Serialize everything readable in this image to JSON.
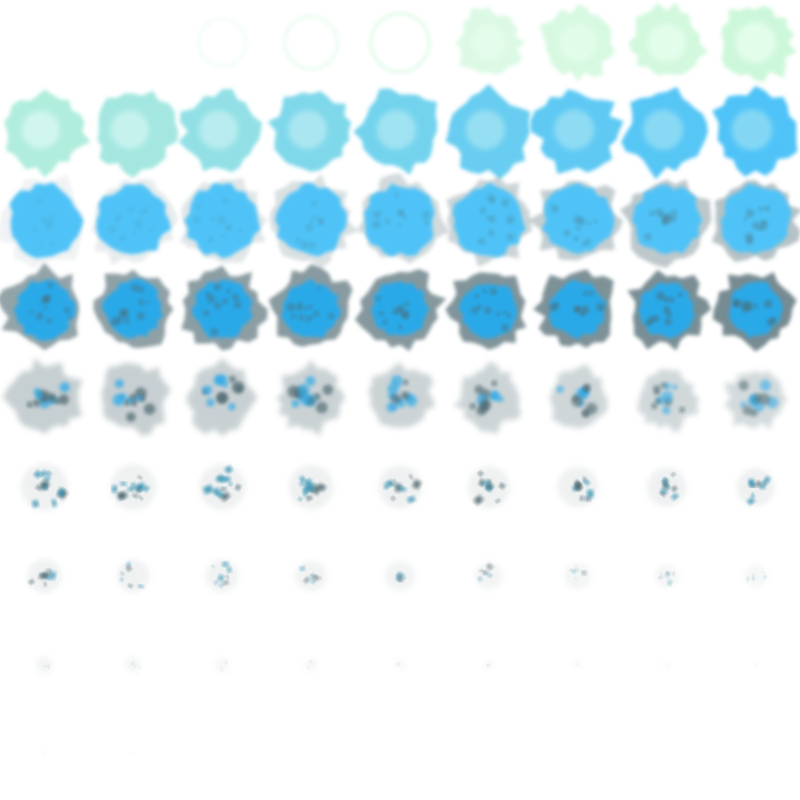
{
  "sprite_sheet": {
    "columns": 9,
    "rows": 9,
    "frame_count": 74,
    "leading_empty_frames": 2,
    "subject": "burst-explosion",
    "colors": {
      "background": "#ffffff",
      "early_glow": "#c8f7d6",
      "early_core": "#e9fff0",
      "mid_blue": "#4fc3f7",
      "mid_blue_dark": "#29a9e8",
      "smoke": "#4d6870",
      "debris": "#2f8fb0"
    },
    "frames": [
      {
        "scale": 0.0,
        "phase": "empty"
      },
      {
        "scale": 0.0,
        "phase": "empty"
      },
      {
        "scale": 0.34,
        "phase": "ring",
        "opacity": 0.25
      },
      {
        "scale": 0.38,
        "phase": "ring",
        "opacity": 0.4
      },
      {
        "scale": 0.42,
        "phase": "ring",
        "opacity": 0.55
      },
      {
        "scale": 0.44,
        "phase": "glow",
        "opacity": 0.7
      },
      {
        "scale": 0.46,
        "phase": "glow",
        "opacity": 0.8
      },
      {
        "scale": 0.48,
        "phase": "glow",
        "opacity": 0.9
      },
      {
        "scale": 0.5,
        "phase": "glow",
        "opacity": 1.0
      },
      {
        "scale": 0.52,
        "phase": "glow-blue",
        "blue": 0.2
      },
      {
        "scale": 0.52,
        "phase": "glow-blue",
        "blue": 0.3
      },
      {
        "scale": 0.53,
        "phase": "glow-blue",
        "blue": 0.45
      },
      {
        "scale": 0.53,
        "phase": "glow-blue",
        "blue": 0.6
      },
      {
        "scale": 0.54,
        "phase": "glow-blue",
        "blue": 0.7
      },
      {
        "scale": 0.54,
        "phase": "glow-blue",
        "blue": 0.8
      },
      {
        "scale": 0.55,
        "phase": "glow-blue",
        "blue": 0.88
      },
      {
        "scale": 0.55,
        "phase": "glow-blue",
        "blue": 0.94
      },
      {
        "scale": 0.56,
        "phase": "glow-blue",
        "blue": 1.0
      },
      {
        "scale": 0.56,
        "phase": "blue",
        "smoke": 0.1
      },
      {
        "scale": 0.56,
        "phase": "blue",
        "smoke": 0.15
      },
      {
        "scale": 0.56,
        "phase": "blue",
        "smoke": 0.2
      },
      {
        "scale": 0.55,
        "phase": "blue",
        "smoke": 0.25
      },
      {
        "scale": 0.55,
        "phase": "blue",
        "smoke": 0.3
      },
      {
        "scale": 0.55,
        "phase": "blue",
        "smoke": 0.35
      },
      {
        "scale": 0.54,
        "phase": "blue",
        "smoke": 0.4
      },
      {
        "scale": 0.54,
        "phase": "blue",
        "smoke": 0.45
      },
      {
        "scale": 0.54,
        "phase": "blue",
        "smoke": 0.5
      },
      {
        "scale": 0.53,
        "phase": "smoke",
        "smoke": 0.6
      },
      {
        "scale": 0.52,
        "phase": "smoke",
        "smoke": 0.62
      },
      {
        "scale": 0.52,
        "phase": "smoke",
        "smoke": 0.64
      },
      {
        "scale": 0.51,
        "phase": "smoke",
        "smoke": 0.66
      },
      {
        "scale": 0.51,
        "phase": "smoke",
        "smoke": 0.68
      },
      {
        "scale": 0.5,
        "phase": "smoke",
        "smoke": 0.7
      },
      {
        "scale": 0.5,
        "phase": "smoke",
        "smoke": 0.72
      },
      {
        "scale": 0.49,
        "phase": "smoke",
        "smoke": 0.74
      },
      {
        "scale": 0.49,
        "phase": "smoke",
        "smoke": 0.76
      },
      {
        "scale": 0.47,
        "phase": "dissolve",
        "fade": 0.9
      },
      {
        "scale": 0.46,
        "phase": "dissolve",
        "fade": 0.88
      },
      {
        "scale": 0.45,
        "phase": "dissolve",
        "fade": 0.86
      },
      {
        "scale": 0.44,
        "phase": "dissolve",
        "fade": 0.84
      },
      {
        "scale": 0.43,
        "phase": "dissolve",
        "fade": 0.82
      },
      {
        "scale": 0.42,
        "phase": "dissolve",
        "fade": 0.8
      },
      {
        "scale": 0.41,
        "phase": "dissolve",
        "fade": 0.76
      },
      {
        "scale": 0.4,
        "phase": "dissolve",
        "fade": 0.72
      },
      {
        "scale": 0.39,
        "phase": "dissolve",
        "fade": 0.68
      },
      {
        "scale": 0.36,
        "phase": "debris",
        "fade": 0.85
      },
      {
        "scale": 0.35,
        "phase": "debris",
        "fade": 0.85
      },
      {
        "scale": 0.35,
        "phase": "debris",
        "fade": 0.85
      },
      {
        "scale": 0.34,
        "phase": "debris",
        "fade": 0.85
      },
      {
        "scale": 0.33,
        "phase": "debris",
        "fade": 0.85
      },
      {
        "scale": 0.32,
        "phase": "debris",
        "fade": 0.85
      },
      {
        "scale": 0.31,
        "phase": "debris",
        "fade": 0.85
      },
      {
        "scale": 0.3,
        "phase": "debris",
        "fade": 0.85
      },
      {
        "scale": 0.29,
        "phase": "debris",
        "fade": 0.85
      },
      {
        "scale": 0.26,
        "phase": "debris",
        "fade": 0.8
      },
      {
        "scale": 0.25,
        "phase": "debris",
        "fade": 0.78
      },
      {
        "scale": 0.25,
        "phase": "debris",
        "fade": 0.76
      },
      {
        "scale": 0.24,
        "phase": "debris",
        "fade": 0.72
      },
      {
        "scale": 0.23,
        "phase": "debris",
        "fade": 0.7
      },
      {
        "scale": 0.21,
        "phase": "debris",
        "fade": 0.66
      },
      {
        "scale": 0.2,
        "phase": "debris",
        "fade": 0.6
      },
      {
        "scale": 0.18,
        "phase": "debris",
        "fade": 0.55
      },
      {
        "scale": 0.17,
        "phase": "debris",
        "fade": 0.5
      },
      {
        "scale": 0.13,
        "phase": "debris",
        "fade": 0.6
      },
      {
        "scale": 0.12,
        "phase": "debris",
        "fade": 0.55
      },
      {
        "scale": 0.11,
        "phase": "debris",
        "fade": 0.5
      },
      {
        "scale": 0.1,
        "phase": "debris",
        "fade": 0.45
      },
      {
        "scale": 0.09,
        "phase": "debris",
        "fade": 0.4
      },
      {
        "scale": 0.08,
        "phase": "debris",
        "fade": 0.35
      },
      {
        "scale": 0.07,
        "phase": "debris",
        "fade": 0.3
      },
      {
        "scale": 0.06,
        "phase": "debris",
        "fade": 0.25
      },
      {
        "scale": 0.05,
        "phase": "debris",
        "fade": 0.2
      },
      {
        "scale": 0.04,
        "phase": "debris",
        "fade": 0.18
      },
      {
        "scale": 0.04,
        "phase": "debris",
        "fade": 0.14
      }
    ]
  }
}
